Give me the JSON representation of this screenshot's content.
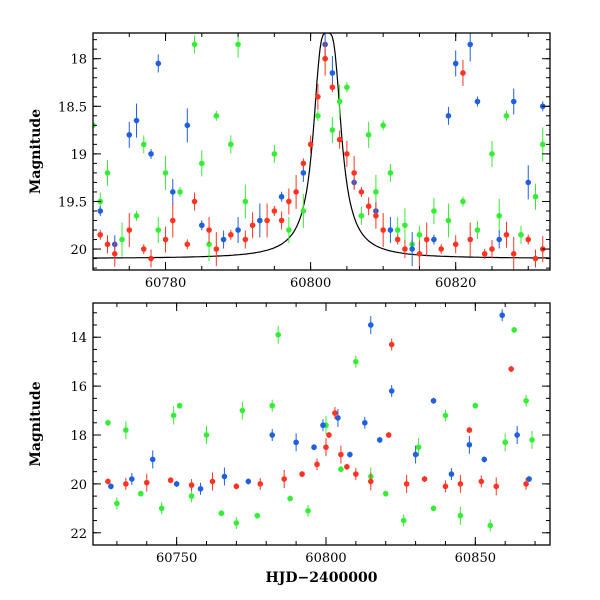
{
  "chart_data": [
    {
      "type": "scatter",
      "panel": "top",
      "xlabel": "",
      "ylabel": "Magnitude",
      "xlim": [
        60770,
        60833
      ],
      "ylim": [
        20.22,
        17.73
      ],
      "y_inverted": true,
      "xticks": [
        60780,
        60800,
        60820
      ],
      "xtick_labels": [
        "60780",
        "60800",
        "60820"
      ],
      "yticks": [
        18,
        18.5,
        19,
        19.5,
        20
      ],
      "ytick_labels": [
        "18",
        "18.5",
        "19",
        "19.5",
        "20"
      ],
      "series": [
        {
          "color": "#ff3322",
          "points": [
            [
              60771,
              19.85
            ],
            [
              60772,
              19.95
            ],
            [
              60773,
              20.05
            ],
            [
              60775,
              19.8
            ],
            [
              60777,
              20.0
            ],
            [
              60778,
              20.1
            ],
            [
              60780,
              19.9
            ],
            [
              60781,
              19.7
            ],
            [
              60783,
              19.95
            ],
            [
              60784,
              19.5
            ],
            [
              60786,
              19.8
            ],
            [
              60787,
              20.0
            ],
            [
              60789,
              19.85
            ],
            [
              60791,
              19.9
            ],
            [
              60792,
              19.75
            ],
            [
              60794,
              19.7
            ],
            [
              60795,
              19.6
            ],
            [
              60796,
              19.7
            ],
            [
              60797,
              19.5
            ],
            [
              60798,
              19.4
            ],
            [
              60799,
              19.1
            ],
            [
              60800,
              18.9
            ],
            [
              60801,
              18.4
            ],
            [
              60802,
              18.0
            ],
            [
              60803,
              18.3
            ],
            [
              60804,
              18.85
            ],
            [
              60805,
              19.0
            ],
            [
              60806,
              19.2
            ],
            [
              60807,
              19.4
            ],
            [
              60808,
              19.55
            ],
            [
              60809,
              19.65
            ],
            [
              60810,
              19.8
            ],
            [
              60812,
              19.9
            ],
            [
              60813,
              20.0
            ],
            [
              60815,
              20.05
            ],
            [
              60816,
              19.9
            ],
            [
              60818,
              20.0
            ],
            [
              60820,
              19.95
            ],
            [
              60821,
              18.15
            ],
            [
              60822,
              19.9
            ],
            [
              60824,
              20.05
            ],
            [
              60825,
              20.0
            ],
            [
              60827,
              19.85
            ],
            [
              60828,
              20.05
            ],
            [
              60830,
              19.9
            ],
            [
              60831,
              20.1
            ],
            [
              60832,
              20.0
            ]
          ]
        },
        {
          "color": "#1f5fe0",
          "points": [
            [
              60771,
              19.6
            ],
            [
              60773,
              19.95
            ],
            [
              60775,
              18.8
            ],
            [
              60776,
              18.65
            ],
            [
              60778,
              19.0
            ],
            [
              60779,
              18.05
            ],
            [
              60781,
              19.4
            ],
            [
              60783,
              18.7
            ],
            [
              60785,
              19.75
            ],
            [
              60788,
              19.9
            ],
            [
              60790,
              19.8
            ],
            [
              60793,
              19.7
            ],
            [
              60796,
              19.45
            ],
            [
              60799,
              19.2
            ],
            [
              60802,
              17.85
            ],
            [
              60803,
              18.15
            ],
            [
              60806,
              19.3
            ],
            [
              60809,
              19.6
            ],
            [
              60811,
              19.8
            ],
            [
              60814,
              20.0
            ],
            [
              60817,
              19.9
            ],
            [
              60819,
              18.6
            ],
            [
              60820,
              18.05
            ],
            [
              60822,
              17.85
            ],
            [
              60823,
              18.45
            ],
            [
              60826,
              19.9
            ],
            [
              60828,
              18.45
            ],
            [
              60830,
              19.3
            ],
            [
              60832,
              18.5
            ]
          ]
        },
        {
          "color": "#33ee33",
          "points": [
            [
              60770,
              18.7
            ],
            [
              60771,
              19.5
            ],
            [
              60772,
              19.2
            ],
            [
              60774,
              19.9
            ],
            [
              60776,
              19.65
            ],
            [
              60777,
              18.9
            ],
            [
              60779,
              19.8
            ],
            [
              60780,
              19.2
            ],
            [
              60782,
              19.4
            ],
            [
              60784,
              17.85
            ],
            [
              60785,
              19.1
            ],
            [
              60786,
              19.95
            ],
            [
              60787,
              18.6
            ],
            [
              60789,
              18.9
            ],
            [
              60790,
              17.85
            ],
            [
              60791,
              19.5
            ],
            [
              60793,
              19.7
            ],
            [
              60795,
              19.0
            ],
            [
              60797,
              19.8
            ],
            [
              60799,
              19.6
            ],
            [
              60801,
              18.6
            ],
            [
              60802,
              18.0
            ],
            [
              60803,
              18.75
            ],
            [
              60804,
              18.45
            ],
            [
              60805,
              18.3
            ],
            [
              60807,
              19.65
            ],
            [
              60808,
              18.8
            ],
            [
              60809,
              19.4
            ],
            [
              60810,
              18.7
            ],
            [
              60811,
              19.2
            ],
            [
              60812,
              19.8
            ],
            [
              60813,
              19.75
            ],
            [
              60814,
              19.95
            ],
            [
              60815,
              19.85
            ],
            [
              60817,
              19.6
            ],
            [
              60819,
              19.7
            ],
            [
              60821,
              19.5
            ],
            [
              60823,
              19.8
            ],
            [
              60825,
              19.0
            ],
            [
              60826,
              19.65
            ],
            [
              60827,
              18.6
            ],
            [
              60829,
              19.85
            ],
            [
              60831,
              19.45
            ],
            [
              60832,
              18.9
            ]
          ]
        }
      ],
      "model_curve": {
        "color": "#000000",
        "baseline": 20.1,
        "peak_x": 60802.3,
        "peak_y": 17.73
      }
    },
    {
      "type": "scatter",
      "panel": "bottom",
      "xlabel": "HJD−2400000",
      "ylabel": "Magnitude",
      "xlim": [
        60722,
        60875
      ],
      "ylim": [
        22.5,
        12.6
      ],
      "y_inverted": true,
      "xticks": [
        60750,
        60800,
        60850
      ],
      "xtick_labels": [
        "60750",
        "60800",
        "60850"
      ],
      "yticks": [
        14,
        16,
        18,
        20,
        22
      ],
      "ytick_labels": [
        "14",
        "16",
        "18",
        "20",
        "22"
      ],
      "series": [
        {
          "color": "#ff3322",
          "points": [
            [
              60727,
              19.9
            ],
            [
              60733,
              20.0
            ],
            [
              60740,
              19.95
            ],
            [
              60748,
              19.85
            ],
            [
              60755,
              20.05
            ],
            [
              60762,
              19.9
            ],
            [
              60770,
              20.1
            ],
            [
              60778,
              20.0
            ],
            [
              60786,
              19.8
            ],
            [
              60792,
              19.6
            ],
            [
              60797,
              19.2
            ],
            [
              60800,
              18.5
            ],
            [
              60801,
              18.0
            ],
            [
              60803,
              17.1
            ],
            [
              60805,
              18.8
            ],
            [
              60807,
              19.3
            ],
            [
              60810,
              19.6
            ],
            [
              60815,
              19.9
            ],
            [
              60821,
              18.0
            ],
            [
              60822,
              14.3
            ],
            [
              60827,
              20.0
            ],
            [
              60833,
              19.8
            ],
            [
              60840,
              20.1
            ],
            [
              60845,
              20.0
            ],
            [
              60848,
              17.8
            ],
            [
              60852,
              19.9
            ],
            [
              60857,
              20.1
            ],
            [
              60862,
              15.3
            ],
            [
              60867,
              20.0
            ]
          ]
        },
        {
          "color": "#1f5fe0",
          "points": [
            [
              60728,
              20.1
            ],
            [
              60735,
              19.8
            ],
            [
              60742,
              19.0
            ],
            [
              60750,
              20.0
            ],
            [
              60758,
              20.2
            ],
            [
              60766,
              19.7
            ],
            [
              60774,
              19.9
            ],
            [
              60782,
              18.0
            ],
            [
              60790,
              18.3
            ],
            [
              60796,
              18.5
            ],
            [
              60799,
              17.6
            ],
            [
              60804,
              17.3
            ],
            [
              60808,
              18.8
            ],
            [
              60813,
              17.5
            ],
            [
              60815,
              13.5
            ],
            [
              60818,
              18.2
            ],
            [
              60822,
              16.2
            ],
            [
              60830,
              18.8
            ],
            [
              60836,
              16.6
            ],
            [
              60842,
              19.6
            ],
            [
              60848,
              18.4
            ],
            [
              60853,
              19.0
            ],
            [
              60859,
              13.1
            ],
            [
              60864,
              18.0
            ],
            [
              60868,
              19.8
            ]
          ]
        },
        {
          "color": "#33ee33",
          "points": [
            [
              60727,
              17.5
            ],
            [
              60730,
              20.8
            ],
            [
              60733,
              17.8
            ],
            [
              60738,
              20.4
            ],
            [
              60745,
              21.0
            ],
            [
              60749,
              17.2
            ],
            [
              60751,
              16.8
            ],
            [
              60755,
              20.5
            ],
            [
              60760,
              18.0
            ],
            [
              60765,
              21.2
            ],
            [
              60770,
              21.6
            ],
            [
              60772,
              17.0
            ],
            [
              60777,
              21.3
            ],
            [
              60782,
              16.8
            ],
            [
              60784,
              13.9
            ],
            [
              60788,
              20.6
            ],
            [
              60794,
              21.1
            ],
            [
              60800,
              17.6
            ],
            [
              60805,
              19.4
            ],
            [
              60810,
              15.0
            ],
            [
              60815,
              19.7
            ],
            [
              60820,
              20.4
            ],
            [
              60826,
              21.5
            ],
            [
              60831,
              18.5
            ],
            [
              60836,
              21.0
            ],
            [
              60840,
              17.2
            ],
            [
              60845,
              21.3
            ],
            [
              60850,
              16.8
            ],
            [
              60855,
              21.7
            ],
            [
              60860,
              18.3
            ],
            [
              60863,
              13.7
            ],
            [
              60867,
              16.6
            ],
            [
              60869,
              18.2
            ]
          ]
        }
      ]
    }
  ]
}
